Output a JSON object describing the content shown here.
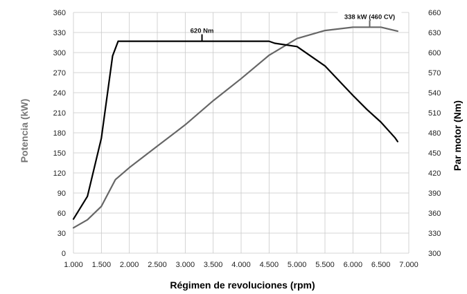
{
  "chart_data": {
    "type": "line",
    "xlabel": "Régimen de revoluciones (rpm)",
    "ylabel_left": "Potencia (kW)",
    "ylabel_right": "Par motor (Nm)",
    "xlim": [
      1000,
      7000
    ],
    "ylim_left": [
      0,
      360
    ],
    "ylim_right": [
      300,
      660
    ],
    "grid": true,
    "x_ticks": [
      "1.000",
      "1.500",
      "2.000",
      "2.500",
      "3.000",
      "3.500",
      "4.000",
      "4.500",
      "5.000",
      "5.500",
      "6.000",
      "6.500",
      "7.000"
    ],
    "y_ticks_left": [
      "0",
      "30",
      "60",
      "90",
      "120",
      "150",
      "180",
      "210",
      "240",
      "270",
      "300",
      "330",
      "360"
    ],
    "y_ticks_right": [
      "300",
      "330",
      "360",
      "390",
      "420",
      "450",
      "480",
      "510",
      "540",
      "570",
      "600",
      "630",
      "660"
    ],
    "series": [
      {
        "axis": "left",
        "color": "#666666",
        "x": [
          1000,
          1250,
          1500,
          1750,
          2000,
          2500,
          3000,
          3500,
          4000,
          4500,
          5000,
          5500,
          6000,
          6250,
          6500,
          6800
        ],
        "values": [
          38,
          50,
          70,
          110,
          128,
          160,
          192,
          228,
          261,
          296,
          321,
          333,
          338,
          338,
          338,
          332
        ]
      },
      {
        "axis": "right",
        "color": "#000000",
        "x": [
          1000,
          1250,
          1500,
          1700,
          1800,
          2000,
          3000,
          4000,
          4500,
          4600,
          5000,
          5500,
          6000,
          6250,
          6500,
          6750,
          6800
        ],
        "values": [
          351,
          385,
          472,
          595,
          617,
          617,
          617,
          617,
          617,
          614,
          609,
          580,
          536,
          515,
          496,
          473,
          467
        ]
      }
    ],
    "annotations": [
      {
        "text": "620 Nm",
        "axis": "right",
        "x": 3300,
        "y": 617
      },
      {
        "text": "338 kW (460 CV)",
        "axis": "left",
        "x": 6300,
        "y": 338
      }
    ]
  }
}
